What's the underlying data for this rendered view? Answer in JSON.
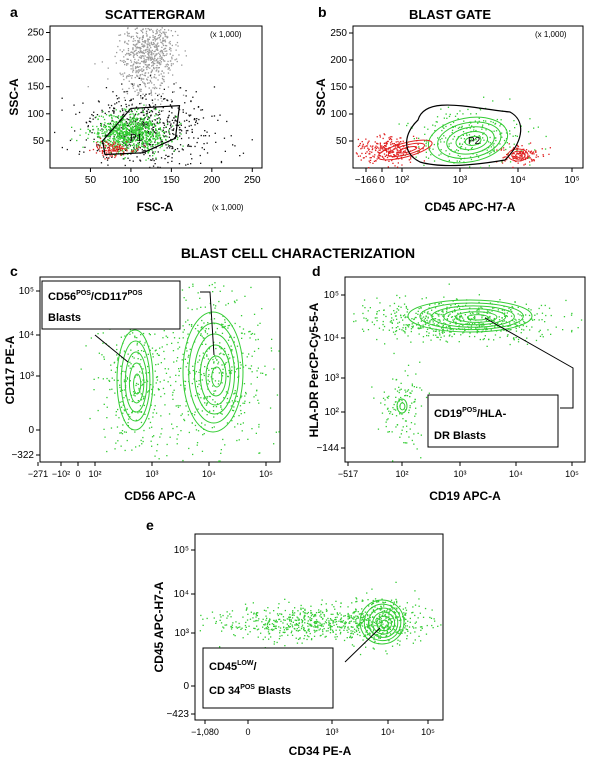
{
  "section_title": "BLAST CELL CHARACTERIZATION",
  "colors": {
    "gray": "#9a9a9a",
    "black": "#111111",
    "green": "#33cc33",
    "red": "#e02020"
  },
  "chart_data": [
    {
      "panel": "a",
      "title": "SCATTERGRAM",
      "type": "scatter",
      "xlabel": "FSC-A",
      "ylabel": "SSC-A",
      "x_scale_note": "(x 1,000)",
      "y_scale_note": "(x 1,000)",
      "x_ticks": [
        "50",
        "100",
        "150",
        "200",
        "250"
      ],
      "y_ticks": [
        "50",
        "100",
        "150",
        "200",
        "250"
      ],
      "xlim": [
        0,
        262
      ],
      "ylim": [
        0,
        262
      ],
      "gate": {
        "label": "P1",
        "polygon": [
          [
            65,
            50
          ],
          [
            100,
            110
          ],
          [
            160,
            115
          ],
          [
            155,
            55
          ],
          [
            115,
            28
          ],
          [
            68,
            25
          ]
        ]
      },
      "populations": [
        {
          "name": "",
          "color": "#9a9a9a",
          "center": [
            120,
            210
          ],
          "spread": [
            18,
            40
          ],
          "count": 700
        },
        {
          "name": "",
          "color": "#111111",
          "center": [
            120,
            70
          ],
          "spread": [
            40,
            35
          ],
          "count": 600
        },
        {
          "name": "",
          "color": "#33cc33",
          "center": [
            100,
            65
          ],
          "spread": [
            22,
            18
          ],
          "count": 900
        },
        {
          "name": "",
          "color": "#e02020",
          "center": [
            75,
            35
          ],
          "spread": [
            12,
            8
          ],
          "count": 120
        }
      ]
    },
    {
      "panel": "b",
      "title": "BLAST GATE",
      "type": "contour",
      "xlabel": "CD45 APC-H7-A",
      "ylabel": "SSC-A",
      "y_scale_note": "(x 1,000)",
      "x_ticks": [
        "−166",
        "0",
        "10²",
        "10³",
        "10⁴",
        "10⁵"
      ],
      "y_ticks": [
        "50",
        "100",
        "150",
        "200",
        "250"
      ],
      "gate": {
        "label": "P2"
      }
    },
    {
      "panel": "c",
      "type": "contour",
      "xlabel": "CD56 APC-A",
      "ylabel": "CD117 PE-A",
      "x_ticks": [
        "−271",
        "−10²",
        "0",
        "10²",
        "10³",
        "10⁴",
        "10⁵"
      ],
      "y_ticks": [
        "−322",
        "0",
        "10³",
        "10⁴",
        "10⁵"
      ],
      "annotation": {
        "line1_a": "CD56",
        "line1_sup_a": "POS",
        "line1_b": "/CD117",
        "line1_sup_b": "POS",
        "line2": "Blasts"
      }
    },
    {
      "panel": "d",
      "type": "contour",
      "xlabel": "CD19 APC-A",
      "ylabel": "HLA-DR PerCP-Cy5-5-A",
      "x_ticks": [
        "−517",
        "10²",
        "10³",
        "10⁴",
        "10⁵"
      ],
      "y_ticks": [
        "−144",
        "10²",
        "10³",
        "10⁴",
        "10⁵"
      ],
      "annotation": {
        "line1_a": "CD19",
        "line1_sup_a": "POS",
        "line1_b": "/HLA-",
        "line2": "DR Blasts"
      }
    },
    {
      "panel": "e",
      "type": "contour",
      "xlabel": "CD34 PE-A",
      "ylabel": "CD45 APC-H7-A",
      "x_ticks": [
        "−1,080",
        "0",
        "10³",
        "10⁴",
        "10⁵"
      ],
      "y_ticks": [
        "−423",
        "0",
        "10³",
        "10⁴",
        "10⁵"
      ],
      "annotation": {
        "line1_a": "CD45",
        "line1_sup_a": "LOW",
        "line1_b": "/",
        "line2_a": "CD 34",
        "line2_sup": "POS",
        "line2_b": " Blasts"
      }
    }
  ]
}
